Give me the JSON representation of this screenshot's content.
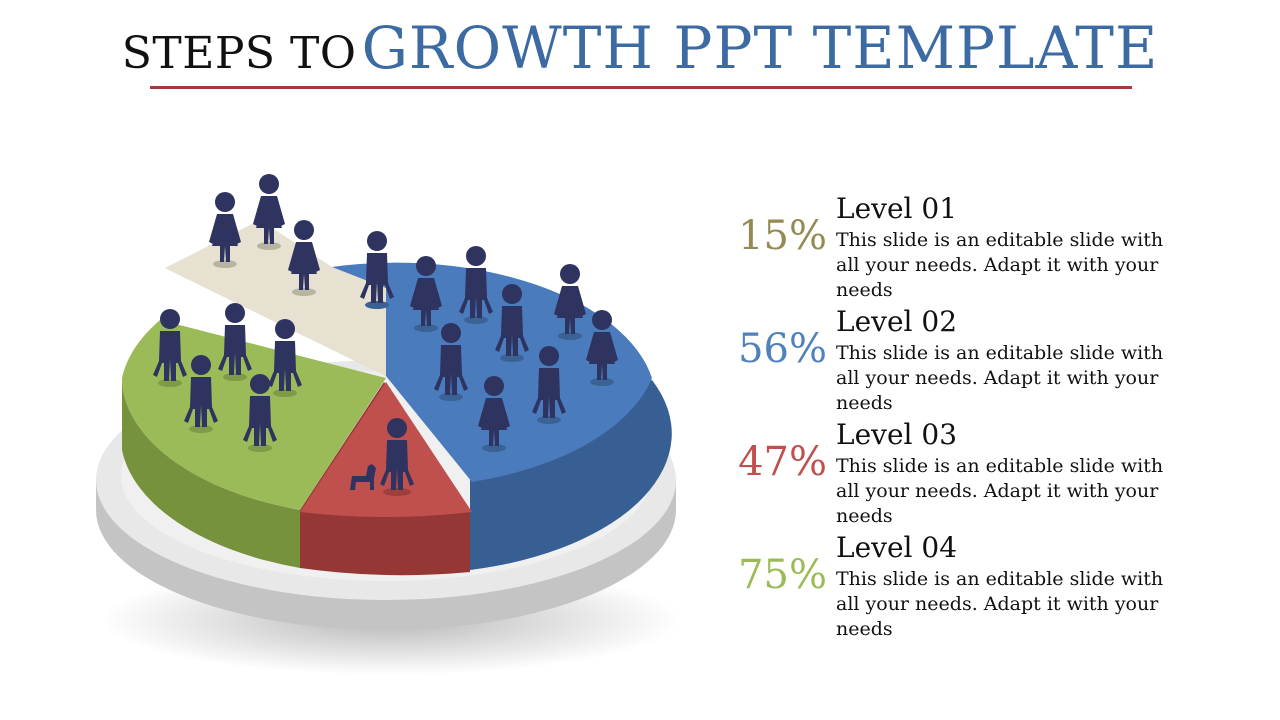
{
  "title": {
    "prefix": "STEPS TO",
    "main": "GROWTH PPT TEMPLATE"
  },
  "colors": {
    "title_accent": "#3c6aa3",
    "rule": "#a63a3a",
    "person": "#2f3360"
  },
  "chart_data": {
    "type": "pie",
    "title": "",
    "slices": [
      {
        "name": "cream",
        "color": "#e6e1d0"
      },
      {
        "name": "blue",
        "color": "#4a7bbd"
      },
      {
        "name": "red",
        "color": "#c0504d"
      },
      {
        "name": "green",
        "color": "#9bbb59"
      }
    ]
  },
  "levels": [
    {
      "label": "Level 01",
      "percent": "15%",
      "color": "#948a54",
      "text": "This slide is an editable slide with all your needs. Adapt it with your needs"
    },
    {
      "label": "Level 02",
      "percent": "56%",
      "color": "#4f81bd",
      "text": "This slide is an editable slide with all your needs. Adapt it with your needs"
    },
    {
      "label": "Level 03",
      "percent": "47%",
      "color": "#c0504d",
      "text": "This slide is an editable slide with all your needs. Adapt it with your needs"
    },
    {
      "label": "Level 04",
      "percent": "75%",
      "color": "#9bbb59",
      "text": "This slide is an editable slide with all your needs. Adapt it with your needs"
    }
  ]
}
